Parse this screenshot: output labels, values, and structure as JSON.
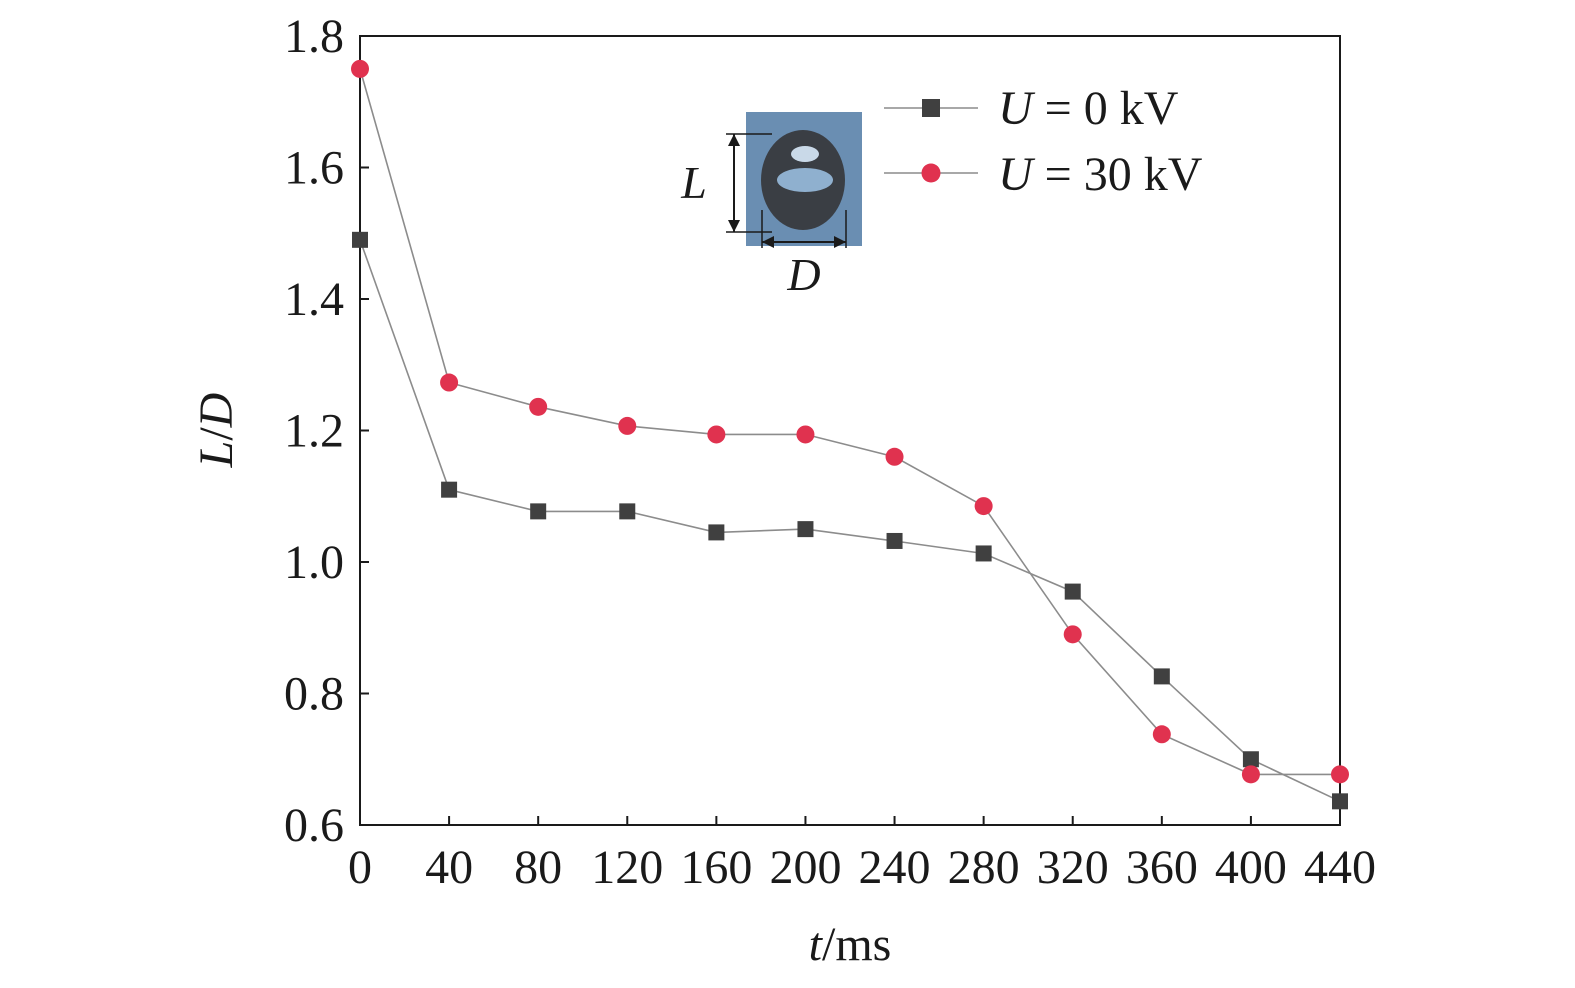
{
  "chart_data": {
    "type": "line",
    "title": "",
    "xlabel": {
      "var": "t",
      "unit": "/ms"
    },
    "ylabel": {
      "num": "L",
      "sep": "/",
      "den": "D"
    },
    "x": [
      0,
      40,
      80,
      120,
      160,
      200,
      240,
      280,
      320,
      360,
      400,
      440
    ],
    "xlim": [
      0,
      440
    ],
    "ylim": [
      0.6,
      1.8
    ],
    "xticks": [
      "0",
      "40",
      "80",
      "120",
      "160",
      "200",
      "240",
      "280",
      "320",
      "360",
      "400",
      "440"
    ],
    "yticks": [
      "0.6",
      "0.8",
      "1.0",
      "1.2",
      "1.4",
      "1.6",
      "1.8"
    ],
    "ytick_values": [
      0.6,
      0.8,
      1.0,
      1.2,
      1.4,
      1.6,
      1.8
    ],
    "grid": false,
    "legend_position": "top-right",
    "series": [
      {
        "var": "U",
        "value_text": " = 0 kV",
        "marker": "square",
        "color": "#404040",
        "line_color": "#8c8c8c",
        "values": [
          1.49,
          1.11,
          1.077,
          1.077,
          1.045,
          1.05,
          1.032,
          1.013,
          0.955,
          0.826,
          0.7,
          0.636
        ]
      },
      {
        "var": "U",
        "value_text": " = 30 kV",
        "marker": "circle",
        "color": "#e0324f",
        "line_color": "#8c8c8c",
        "values": [
          1.75,
          1.273,
          1.236,
          1.207,
          1.194,
          1.194,
          1.16,
          1.085,
          0.89,
          0.738,
          0.677,
          0.677
        ]
      }
    ],
    "inset": {
      "length_label": "L",
      "diameter_label": "D",
      "background": "#6a8eb2"
    }
  }
}
